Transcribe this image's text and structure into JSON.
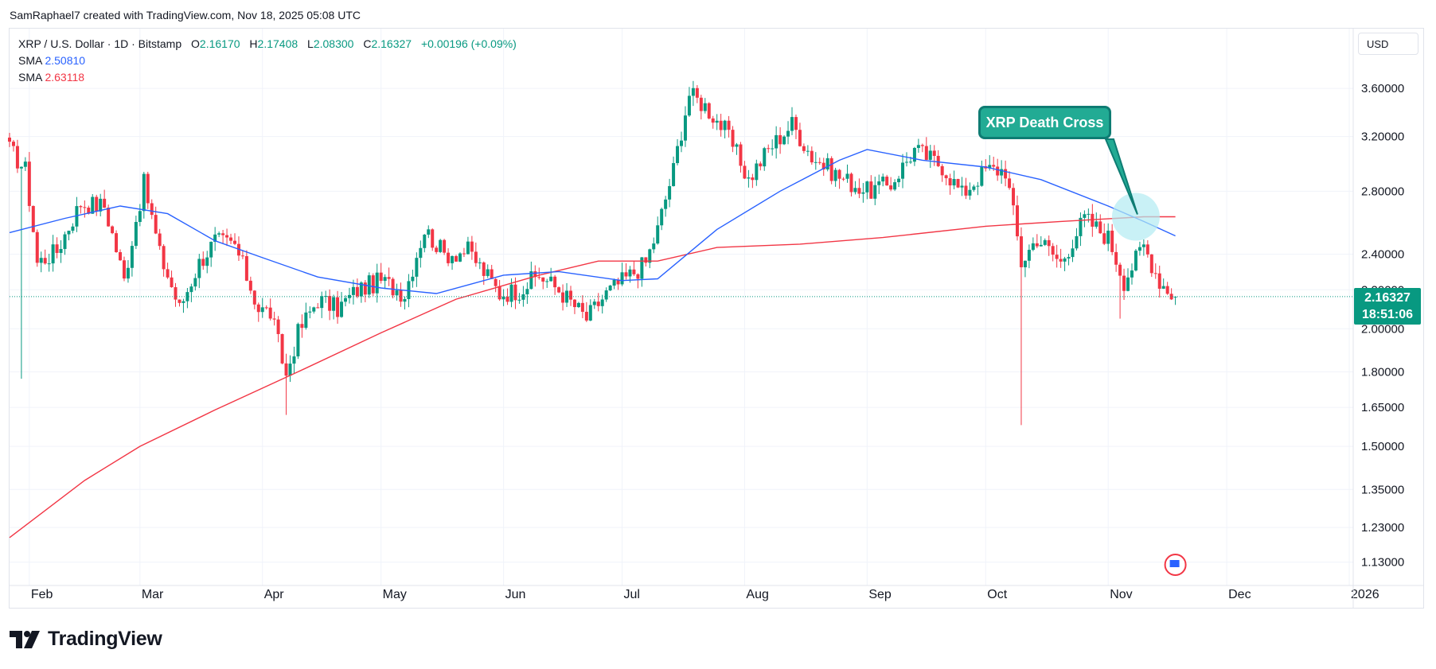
{
  "header": {
    "attribution": "SamRaphael7 created with TradingView.com, Nov 18, 2025 05:08 UTC"
  },
  "legend": {
    "symbol": "XRP / U.S. Dollar · 1D · Bitstamp",
    "open_label": "O",
    "open": "2.16170",
    "high_label": "H",
    "high": "2.17408",
    "low_label": "L",
    "low": "2.08300",
    "close_label": "C",
    "close": "2.16327",
    "change": "+0.00196 (+0.09%)",
    "sma1_label": "SMA",
    "sma1_value": "2.50810",
    "sma2_label": "SMA",
    "sma2_value": "2.63118"
  },
  "currency_button": "USD",
  "price_tag": {
    "price": "2.16327",
    "countdown": "18:51:06"
  },
  "annotation": {
    "text": "XRP Death Cross"
  },
  "brand": {
    "name": "TradingView"
  },
  "colors": {
    "up": "#089981",
    "down": "#f23645",
    "sma_fast": "#2962ff",
    "sma_slow": "#f23645",
    "grid": "#f0f3fa",
    "annotation": "#22ab94"
  },
  "chart_data": {
    "type": "candlestick",
    "scale": "log",
    "ylim": [
      1.08,
      3.9
    ],
    "y_ticks": [
      "3.60000",
      "3.20000",
      "2.80000",
      "2.40000",
      "2.20000",
      "2.00000",
      "1.80000",
      "1.65000",
      "1.50000",
      "1.35000",
      "1.23000",
      "1.13000"
    ],
    "y_tick_values": [
      3.6,
      3.2,
      2.8,
      2.4,
      2.2,
      2.0,
      1.8,
      1.65,
      1.5,
      1.35,
      1.23,
      1.13
    ],
    "x_ticks": [
      "Feb",
      "Mar",
      "Apr",
      "May",
      "Jun",
      "Jul",
      "Aug",
      "Sep",
      "Oct",
      "Nov",
      "Dec",
      "2026"
    ],
    "x_tick_dates": [
      "2025-02-01",
      "2025-03-01",
      "2025-04-01",
      "2025-05-01",
      "2025-06-01",
      "2025-07-01",
      "2025-08-01",
      "2025-09-01",
      "2025-10-01",
      "2025-11-01",
      "2025-12-01",
      "2026-01-01"
    ],
    "x_range": [
      "2025-01-27",
      "2026-01-02"
    ],
    "last_price": 2.16327,
    "anchor_closes": [
      [
        "2025-01-27",
        3.1
      ],
      [
        "2025-01-31",
        2.95
      ],
      [
        "2025-02-03",
        2.35
      ],
      [
        "2025-02-08",
        2.42
      ],
      [
        "2025-02-14",
        2.72
      ],
      [
        "2025-02-20",
        2.7
      ],
      [
        "2025-02-25",
        2.25
      ],
      [
        "2025-03-02",
        2.85
      ],
      [
        "2025-03-06",
        2.4
      ],
      [
        "2025-03-11",
        2.1
      ],
      [
        "2025-03-16",
        2.35
      ],
      [
        "2025-03-20",
        2.48
      ],
      [
        "2025-03-25",
        2.45
      ],
      [
        "2025-03-31",
        2.1
      ],
      [
        "2025-04-03",
        2.08
      ],
      [
        "2025-04-07",
        1.78
      ],
      [
        "2025-04-10",
        1.98
      ],
      [
        "2025-04-15",
        2.15
      ],
      [
        "2025-04-20",
        2.1
      ],
      [
        "2025-04-25",
        2.2
      ],
      [
        "2025-05-01",
        2.25
      ],
      [
        "2025-05-07",
        2.18
      ],
      [
        "2025-05-12",
        2.55
      ],
      [
        "2025-05-17",
        2.4
      ],
      [
        "2025-05-23",
        2.42
      ],
      [
        "2025-05-31",
        2.18
      ],
      [
        "2025-06-05",
        2.2
      ],
      [
        "2025-06-10",
        2.28
      ],
      [
        "2025-06-15",
        2.2
      ],
      [
        "2025-06-22",
        2.05
      ],
      [
        "2025-06-27",
        2.18
      ],
      [
        "2025-07-03",
        2.28
      ],
      [
        "2025-07-07",
        2.35
      ],
      [
        "2025-07-10",
        2.55
      ],
      [
        "2025-07-14",
        2.95
      ],
      [
        "2025-07-18",
        3.55
      ],
      [
        "2025-07-22",
        3.45
      ],
      [
        "2025-07-27",
        3.25
      ],
      [
        "2025-08-02",
        2.88
      ],
      [
        "2025-08-07",
        3.1
      ],
      [
        "2025-08-13",
        3.3
      ],
      [
        "2025-08-18",
        3.05
      ],
      [
        "2025-08-25",
        2.9
      ],
      [
        "2025-09-01",
        2.8
      ],
      [
        "2025-09-07",
        2.85
      ],
      [
        "2025-09-13",
        3.1
      ],
      [
        "2025-09-20",
        2.98
      ],
      [
        "2025-09-25",
        2.78
      ],
      [
        "2025-10-01",
        2.95
      ],
      [
        "2025-10-06",
        2.95
      ],
      [
        "2025-10-10",
        2.35
      ],
      [
        "2025-10-14",
        2.5
      ],
      [
        "2025-10-20",
        2.35
      ],
      [
        "2025-10-26",
        2.62
      ],
      [
        "2025-11-01",
        2.5
      ],
      [
        "2025-11-05",
        2.25
      ],
      [
        "2025-11-10",
        2.45
      ],
      [
        "2025-11-14",
        2.25
      ],
      [
        "2025-11-18",
        2.16
      ]
    ],
    "sma_fast": {
      "label": "SMA",
      "value": 2.5081,
      "points": [
        [
          "2025-01-27",
          2.53
        ],
        [
          "2025-02-10",
          2.62
        ],
        [
          "2025-02-24",
          2.7
        ],
        [
          "2025-03-08",
          2.65
        ],
        [
          "2025-03-20",
          2.48
        ],
        [
          "2025-04-01",
          2.38
        ],
        [
          "2025-04-15",
          2.27
        ],
        [
          "2025-05-01",
          2.21
        ],
        [
          "2025-05-15",
          2.18
        ],
        [
          "2025-06-01",
          2.28
        ],
        [
          "2025-06-15",
          2.3
        ],
        [
          "2025-07-01",
          2.25
        ],
        [
          "2025-07-10",
          2.26
        ],
        [
          "2025-07-25",
          2.55
        ],
        [
          "2025-08-10",
          2.8
        ],
        [
          "2025-08-25",
          3.02
        ],
        [
          "2025-09-01",
          3.1
        ],
        [
          "2025-09-15",
          3.02
        ],
        [
          "2025-10-01",
          2.97
        ],
        [
          "2025-10-15",
          2.88
        ],
        [
          "2025-11-01",
          2.7
        ],
        [
          "2025-11-10",
          2.6
        ],
        [
          "2025-11-18",
          2.51
        ]
      ]
    },
    "sma_slow": {
      "label": "SMA",
      "value": 2.63118,
      "points": [
        [
          "2025-01-27",
          1.2
        ],
        [
          "2025-02-15",
          1.38
        ],
        [
          "2025-03-01",
          1.5
        ],
        [
          "2025-03-20",
          1.64
        ],
        [
          "2025-04-10",
          1.8
        ],
        [
          "2025-05-01",
          1.98
        ],
        [
          "2025-05-20",
          2.15
        ],
        [
          "2025-06-10",
          2.28
        ],
        [
          "2025-06-25",
          2.36
        ],
        [
          "2025-07-10",
          2.36
        ],
        [
          "2025-07-25",
          2.44
        ],
        [
          "2025-08-15",
          2.46
        ],
        [
          "2025-09-05",
          2.5
        ],
        [
          "2025-10-01",
          2.57
        ],
        [
          "2025-10-20",
          2.6
        ],
        [
          "2025-11-10",
          2.63
        ],
        [
          "2025-11-18",
          2.63
        ]
      ]
    },
    "spikes": [
      [
        "2025-01-30",
        1.77
      ],
      [
        "2025-04-07",
        1.62
      ],
      [
        "2025-10-10",
        1.58
      ],
      [
        "2025-11-04",
        2.05
      ]
    ]
  }
}
